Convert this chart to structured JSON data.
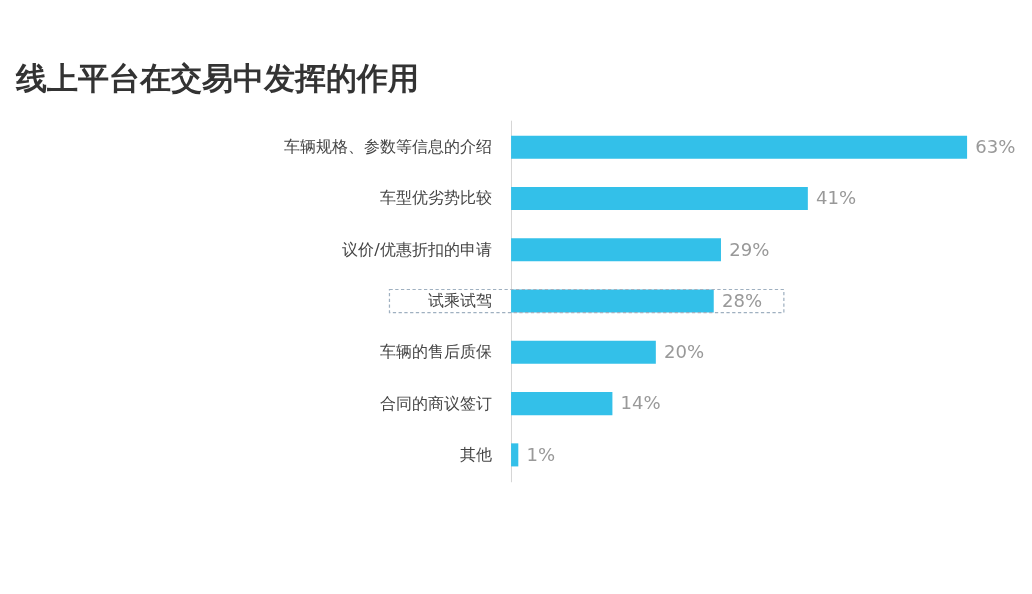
{
  "chart_data": {
    "type": "bar",
    "orientation": "horizontal",
    "title": "线上平台在交易中发挥的作用",
    "categories": [
      "车辆规格、参数等信息的介绍",
      "车型优劣势比较",
      "议价/优惠折扣的申请",
      "试乘试驾",
      "车辆的售后质保",
      "合同的商议签订",
      "其他"
    ],
    "values": [
      63,
      41,
      29,
      28,
      20,
      14,
      1
    ],
    "value_labels": [
      "63%",
      "41%",
      "29%",
      "28%",
      "20%",
      "14%",
      "1%"
    ],
    "color": "#33c0e9"
  }
}
